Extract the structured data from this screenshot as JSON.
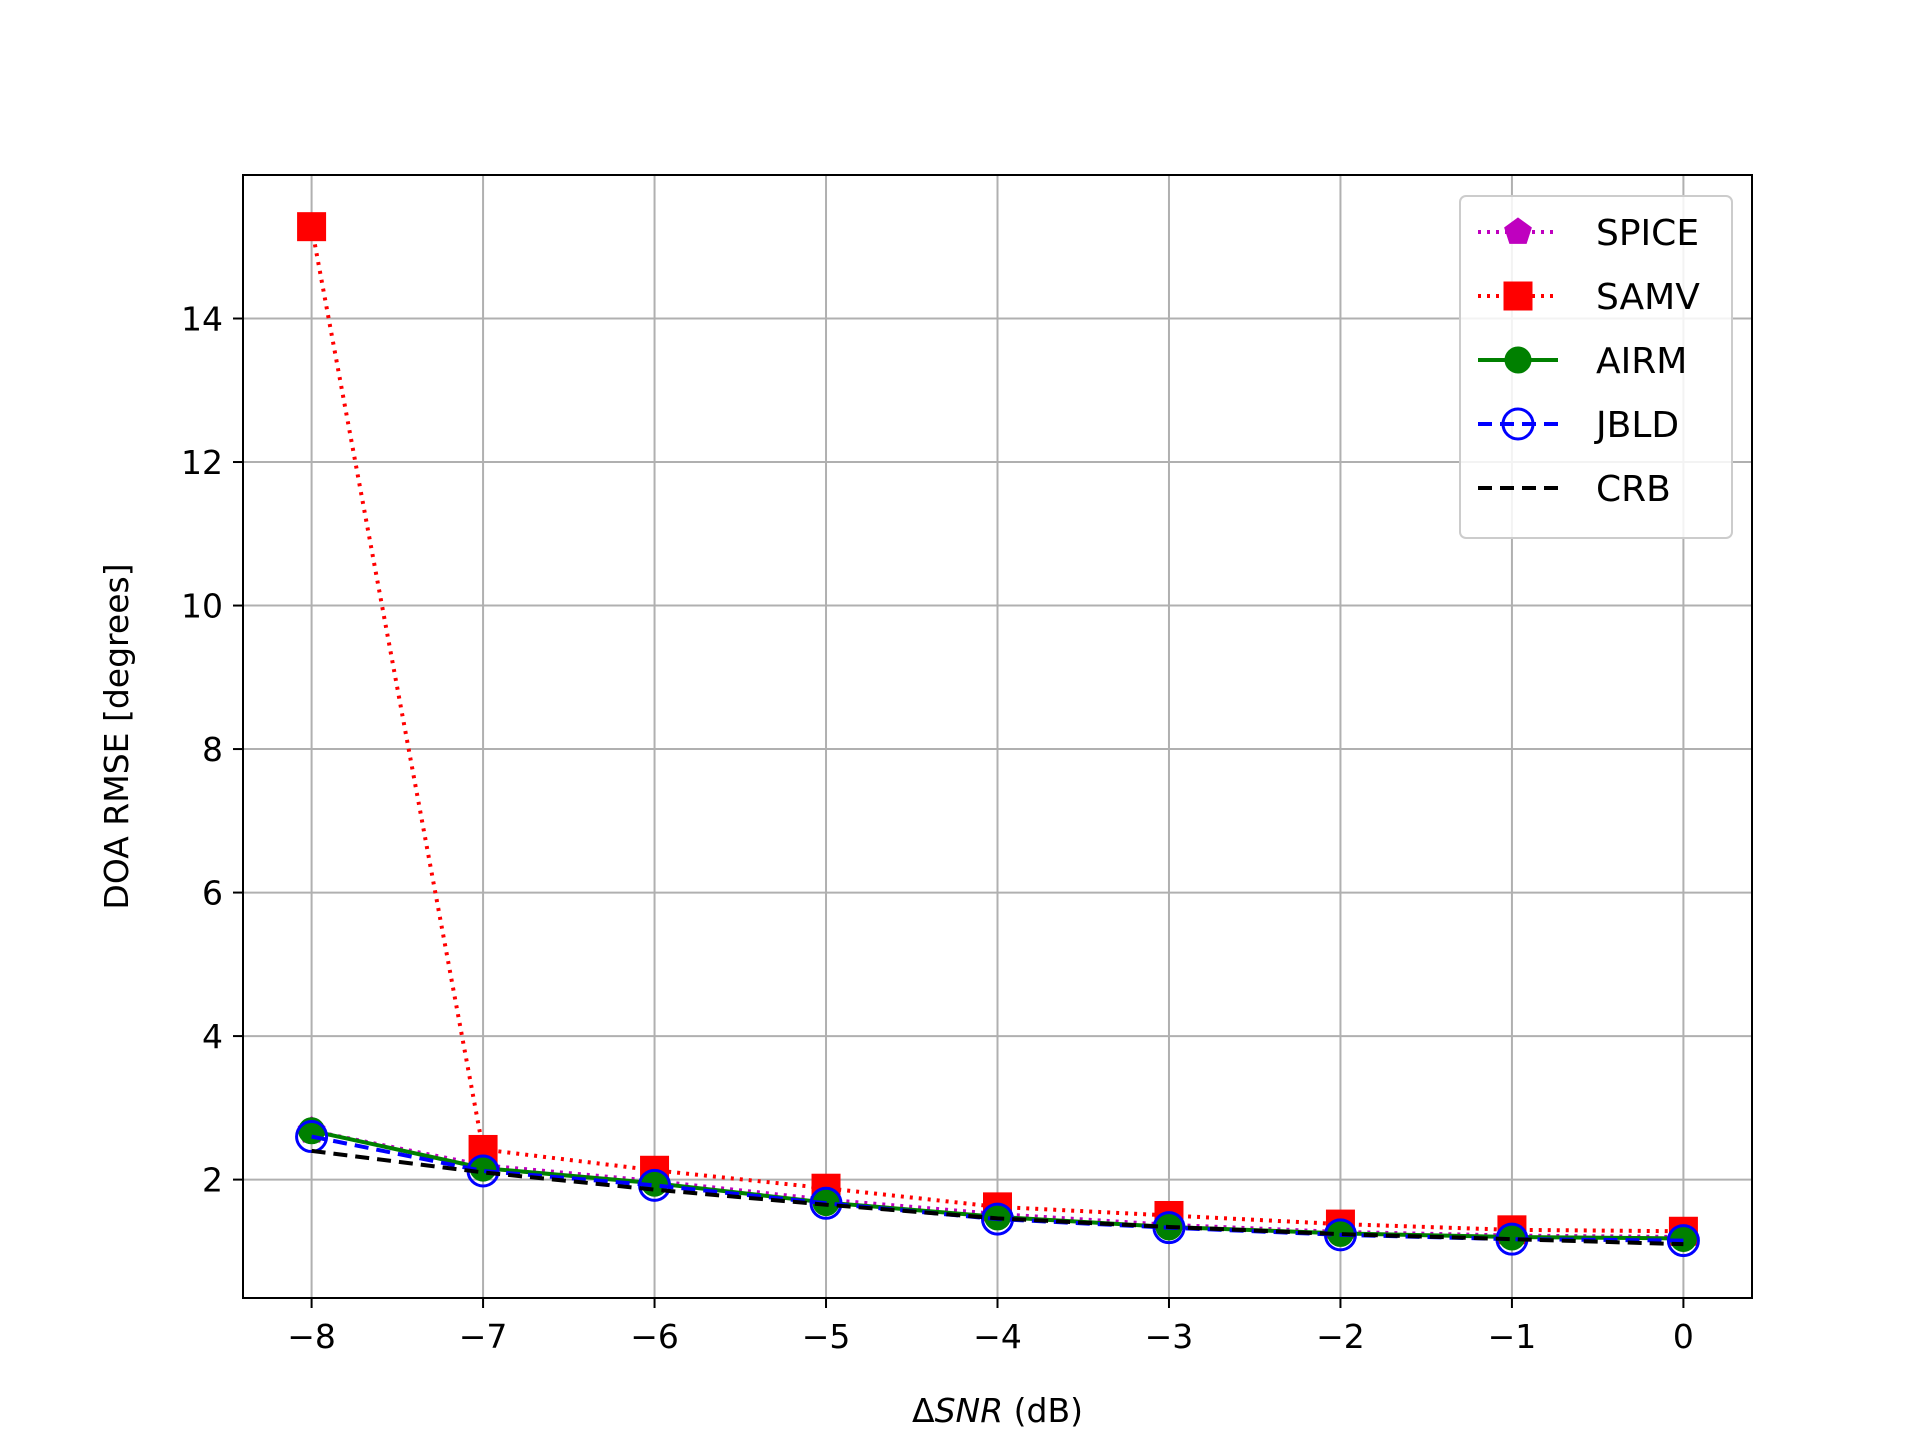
{
  "chart_data": {
    "type": "line",
    "title": "",
    "xlabel": {
      "prefix": "Δ",
      "italic": "SNR",
      "suffix": " (dB)"
    },
    "ylabel": "DOA RMSE [degrees]",
    "x": [
      -8,
      -7,
      -6,
      -5,
      -4,
      -3,
      -2,
      -1,
      0
    ],
    "xticks": [
      -8,
      -7,
      -6,
      -5,
      -4,
      -3,
      -2,
      -1,
      0
    ],
    "xtick_labels": [
      "−8",
      "−7",
      "−6",
      "−5",
      "−4",
      "−3",
      "−2",
      "−1",
      "0"
    ],
    "yticks": [
      2,
      4,
      6,
      8,
      10,
      12,
      14
    ],
    "ytick_labels": [
      "2",
      "4",
      "6",
      "8",
      "10",
      "12",
      "14"
    ],
    "xlim": [
      -8.4,
      0.4
    ],
    "ylim": [
      0.35,
      16.0
    ],
    "grid": true,
    "legend_position": "upper right",
    "series": [
      {
        "name": "SPICE",
        "color": "#bf00bf",
        "line_style": "dotted",
        "marker": "pentagon",
        "values": [
          2.68,
          2.2,
          1.98,
          1.72,
          1.52,
          1.37,
          1.27,
          1.22,
          1.2
        ]
      },
      {
        "name": "SAMV",
        "color": "#ff0000",
        "line_style": "dotted",
        "marker": "square",
        "values": [
          15.28,
          2.42,
          2.13,
          1.88,
          1.62,
          1.5,
          1.38,
          1.3,
          1.28
        ]
      },
      {
        "name": "AIRM",
        "color": "#008000",
        "line_style": "solid",
        "marker": "filled-circle",
        "values": [
          2.68,
          2.16,
          1.95,
          1.68,
          1.48,
          1.34,
          1.25,
          1.2,
          1.18
        ]
      },
      {
        "name": "JBLD",
        "color": "#0000ff",
        "line_style": "dashed",
        "marker": "hollow-circle",
        "values": [
          2.6,
          2.12,
          1.92,
          1.67,
          1.45,
          1.33,
          1.23,
          1.17,
          1.15
        ]
      },
      {
        "name": "CRB",
        "color": "#000000",
        "line_style": "dashed",
        "marker": "none",
        "values": [
          2.4,
          2.1,
          1.86,
          1.65,
          1.46,
          1.34,
          1.24,
          1.17,
          1.1
        ]
      }
    ]
  }
}
